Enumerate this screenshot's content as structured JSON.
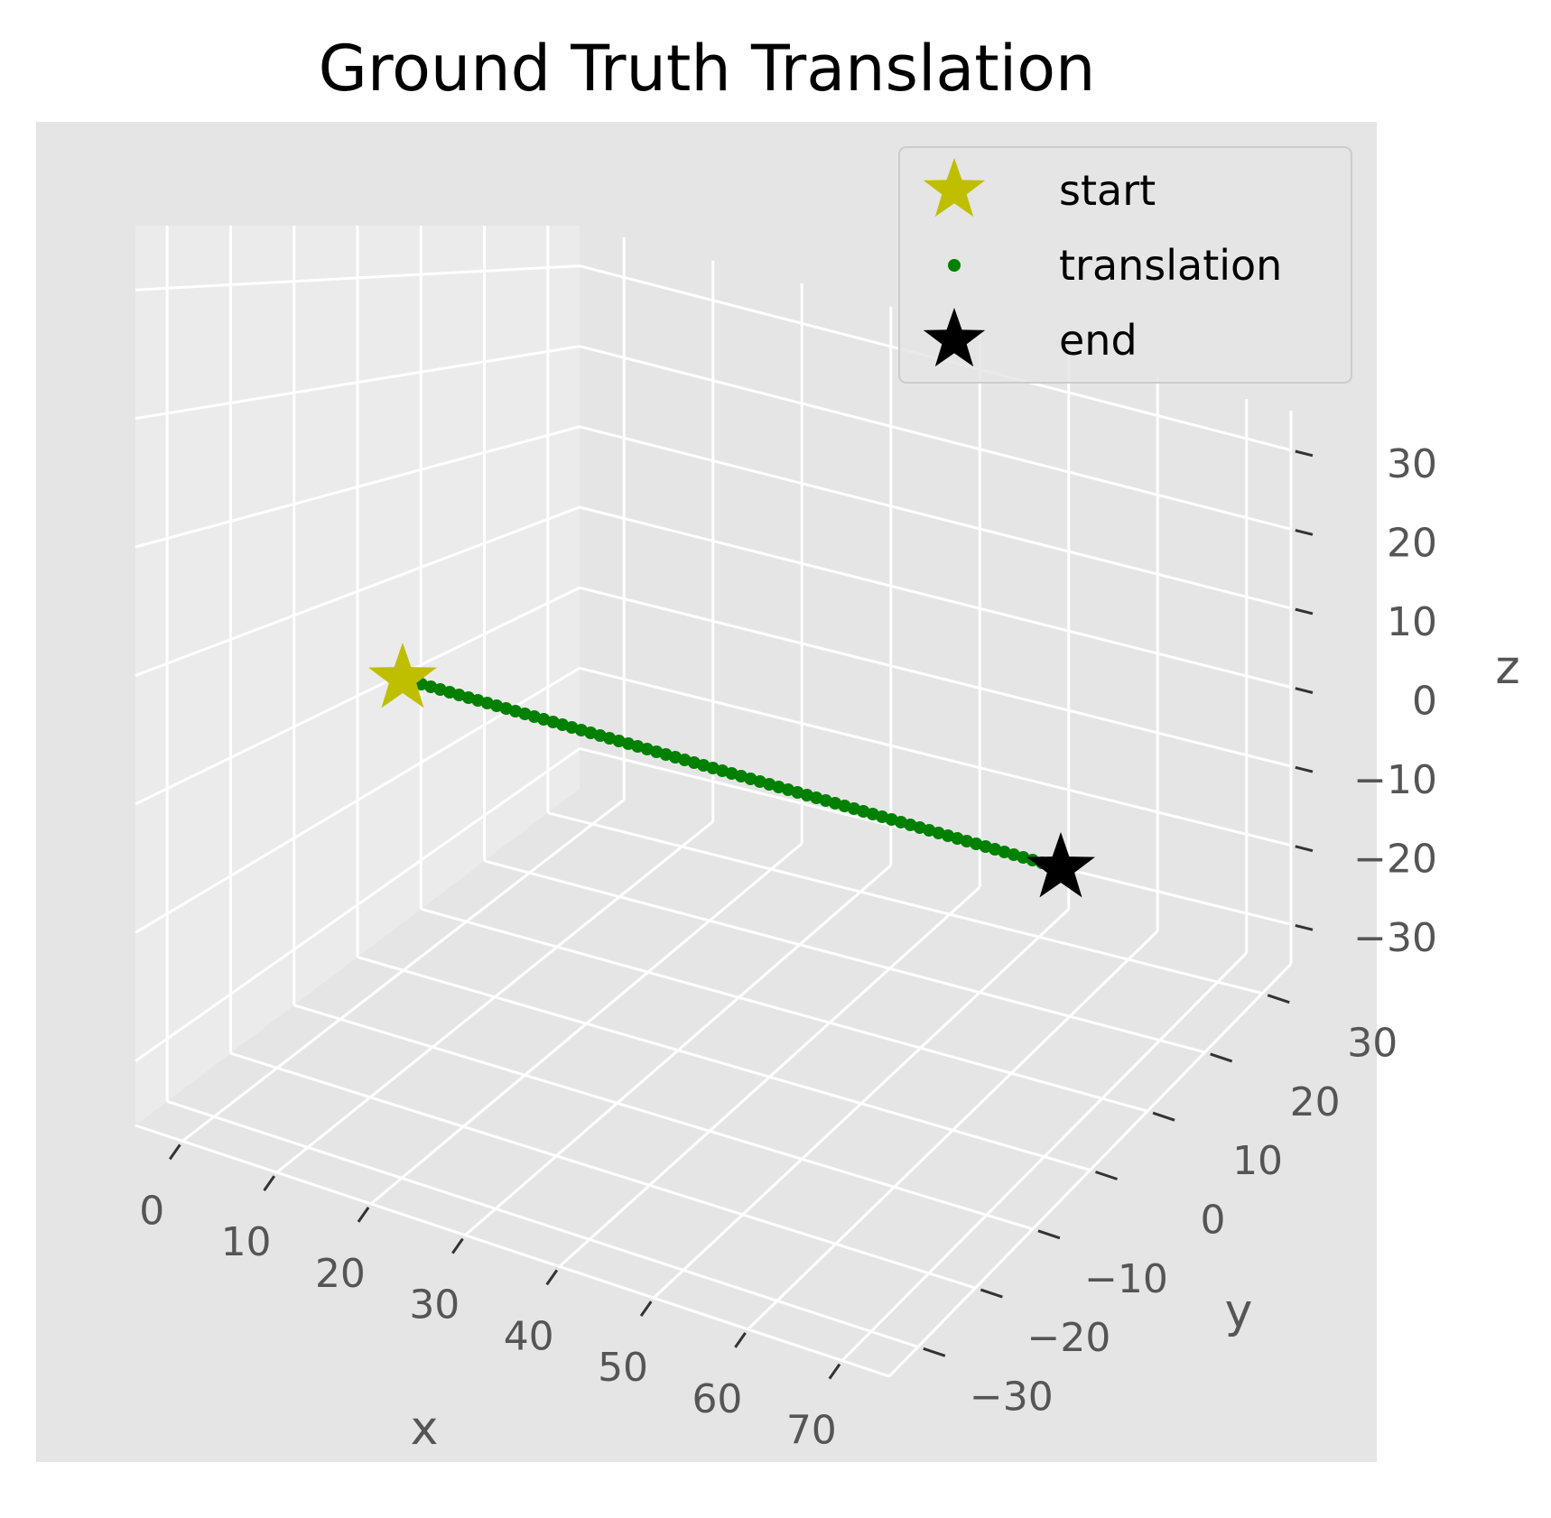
{
  "chart_data": {
    "type": "scatter",
    "projection": "3d",
    "title": "Ground Truth Translation",
    "xlabel": "x",
    "ylabel": "y",
    "zlabel": "z",
    "xlim": [
      -5,
      75
    ],
    "ylim": [
      -35,
      35
    ],
    "zlim": [
      -35,
      35
    ],
    "xticks": [
      0,
      10,
      20,
      30,
      40,
      50,
      60,
      70
    ],
    "yticks": [
      -30,
      -20,
      -10,
      0,
      10,
      20,
      30
    ],
    "zticks": [
      -30,
      -20,
      -10,
      0,
      10,
      20,
      30
    ],
    "grid": true,
    "legend_position": "top-right",
    "series": [
      {
        "name": "start",
        "marker": "star",
        "color": "#bfbf00",
        "points": [
          {
            "x": 0,
            "y": 0,
            "z": 0
          }
        ]
      },
      {
        "name": "translation",
        "marker": "dot",
        "color": "#008000",
        "from": {
          "x": 0,
          "y": 0,
          "z": 0
        },
        "to": {
          "x": 70,
          "y": 0,
          "z": 0
        },
        "n_points": 70
      },
      {
        "name": "end",
        "marker": "star",
        "color": "#000000",
        "points": [
          {
            "x": 70,
            "y": 0,
            "z": 0
          }
        ]
      }
    ]
  }
}
